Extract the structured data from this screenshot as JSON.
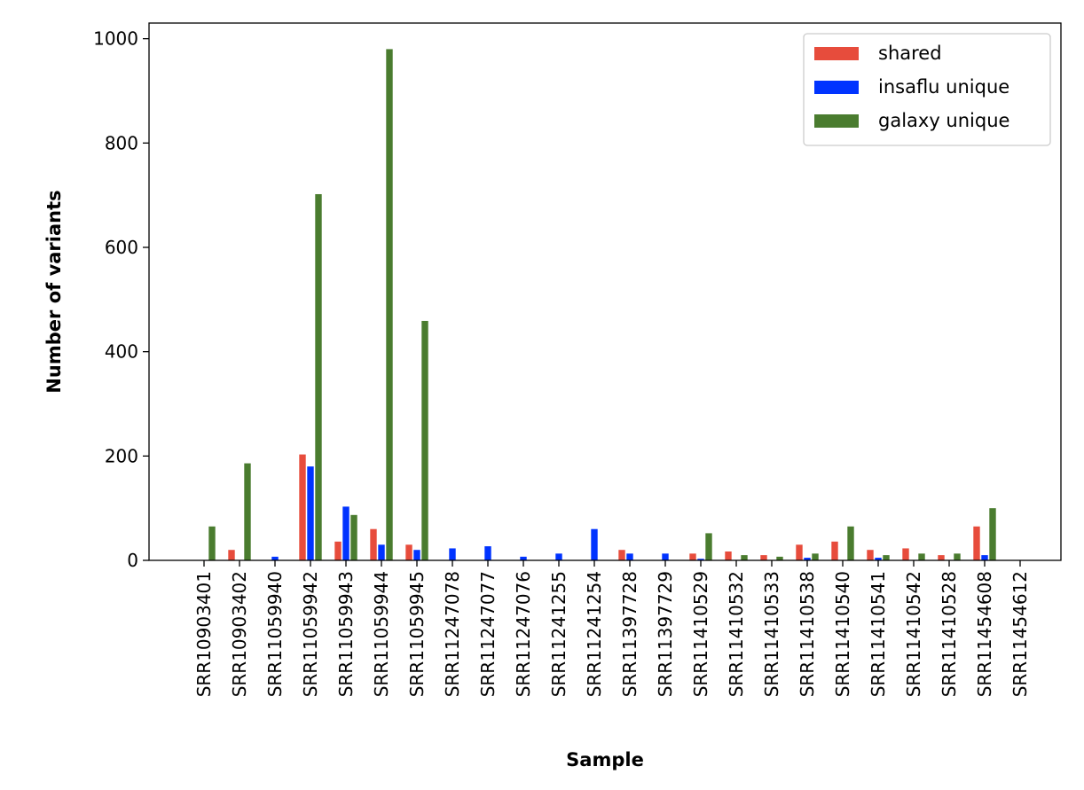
{
  "chart_data": {
    "type": "bar",
    "title": "",
    "xlabel": "Sample",
    "ylabel": "Number of variants",
    "ylim": [
      0,
      1030
    ],
    "yticks": [
      0,
      200,
      400,
      600,
      800,
      1000
    ],
    "grid": false,
    "legend_position": "top-right",
    "categories": [
      "SRR10903401",
      "SRR10903402",
      "SRR11059940",
      "SRR11059942",
      "SRR11059943",
      "SRR11059944",
      "SRR11059945",
      "SRR11247078",
      "SRR11247077",
      "SRR11247076",
      "SRR11241255",
      "SRR11241254",
      "SRR11397728",
      "SRR11397729",
      "SRR11410529",
      "SRR11410532",
      "SRR11410533",
      "SRR11410538",
      "SRR11410540",
      "SRR11410541",
      "SRR11410542",
      "SRR11410528",
      "SRR11454608",
      "SRR11454612"
    ],
    "series": [
      {
        "name": "shared",
        "color": "#e74c3c",
        "values": [
          0,
          20,
          0,
          203,
          36,
          60,
          30,
          0,
          0,
          0,
          0,
          0,
          20,
          0,
          13,
          17,
          10,
          30,
          36,
          20,
          23,
          10,
          65,
          0
        ]
      },
      {
        "name": "insaflu unique",
        "color": "#0033ff",
        "values": [
          0,
          0,
          7,
          180,
          103,
          30,
          20,
          23,
          27,
          7,
          13,
          60,
          13,
          13,
          3,
          0,
          0,
          5,
          0,
          5,
          0,
          0,
          10,
          0
        ]
      },
      {
        "name": "galaxy unique",
        "color": "#4a7c2f",
        "values": [
          65,
          186,
          0,
          702,
          87,
          980,
          459,
          0,
          0,
          0,
          0,
          0,
          0,
          0,
          52,
          10,
          7,
          13,
          65,
          10,
          13,
          13,
          100,
          0
        ]
      }
    ]
  }
}
